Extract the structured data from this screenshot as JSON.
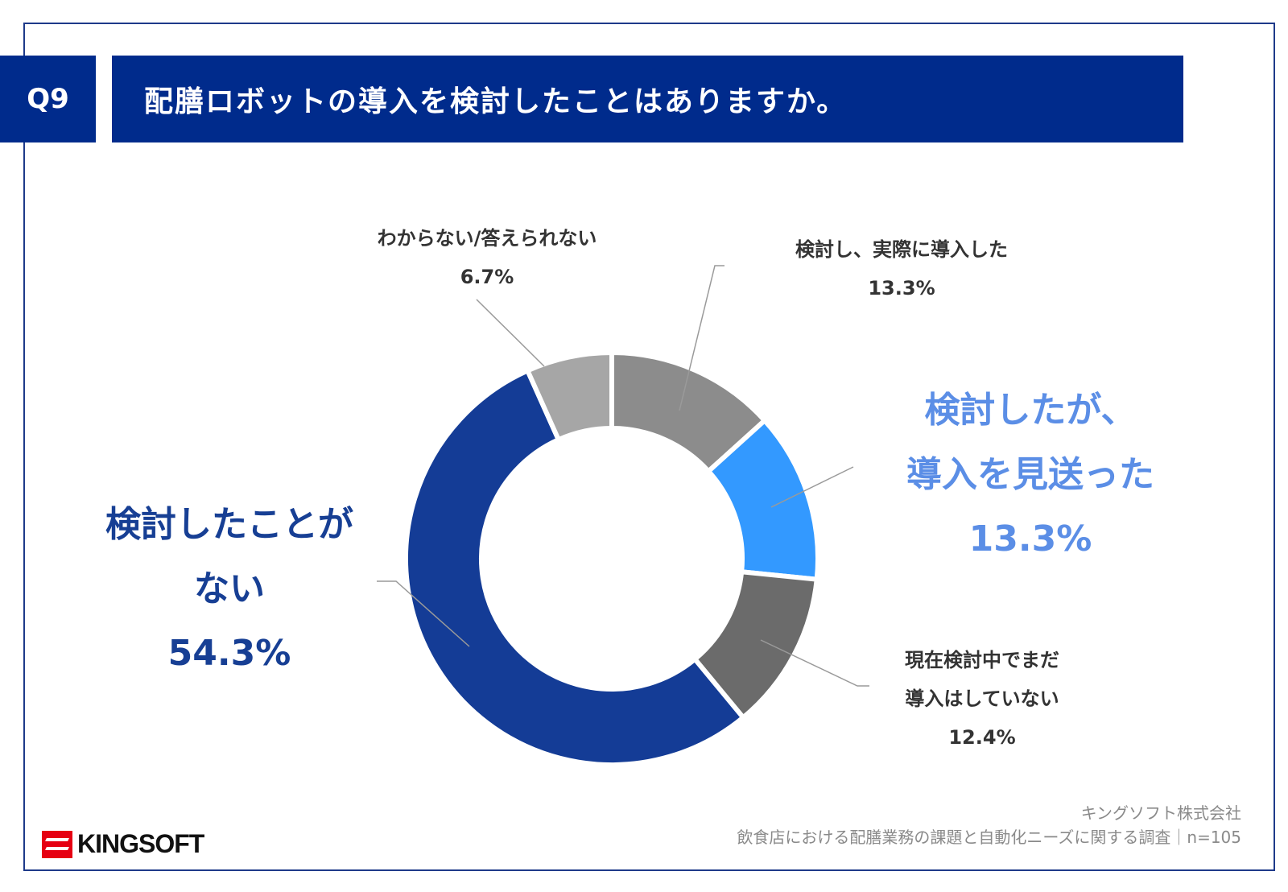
{
  "header": {
    "badge": "Q9",
    "title": "配膳ロボットの導入を検討したことはありますか。"
  },
  "chart_data": {
    "type": "pie",
    "variant": "donut",
    "categories": [
      "検討し、実際に導入した",
      "検討したが、導入を見送った",
      "現在検討中でまだ導入はしていない",
      "検討したことがない",
      "わからない/答えられない"
    ],
    "values": [
      13.3,
      13.3,
      12.4,
      54.3,
      6.7
    ],
    "value_labels": [
      "13.3%",
      "13.3%",
      "12.4%",
      "54.3%",
      "6.7%"
    ],
    "colors": [
      "#8c8c8c",
      "#3399ff",
      "#6b6b6b",
      "#143c96",
      "#a6a6a6"
    ],
    "start": "12 o'clock",
    "direction": "clockwise",
    "labels": [
      {
        "lines": [
          "検討し、実際に導入した"
        ],
        "value": "13.3%"
      },
      {
        "lines": [
          "検討したが、",
          "導入を見送った"
        ],
        "value": "13.3%"
      },
      {
        "lines": [
          "現在検討中でまだ",
          "導入はしていない"
        ],
        "value": "12.4%"
      },
      {
        "lines": [
          "検討したことが",
          "ない"
        ],
        "value": "54.3%"
      },
      {
        "lines": [
          "わからない/答えられない"
        ],
        "value": "6.7%"
      }
    ]
  },
  "footer": {
    "company": "キングソフト株式会社",
    "survey": "飲食店における配膳業務の課題と自動化ニーズに関する調査｜n=105"
  },
  "logo": {
    "text": "KINGSOFT"
  }
}
